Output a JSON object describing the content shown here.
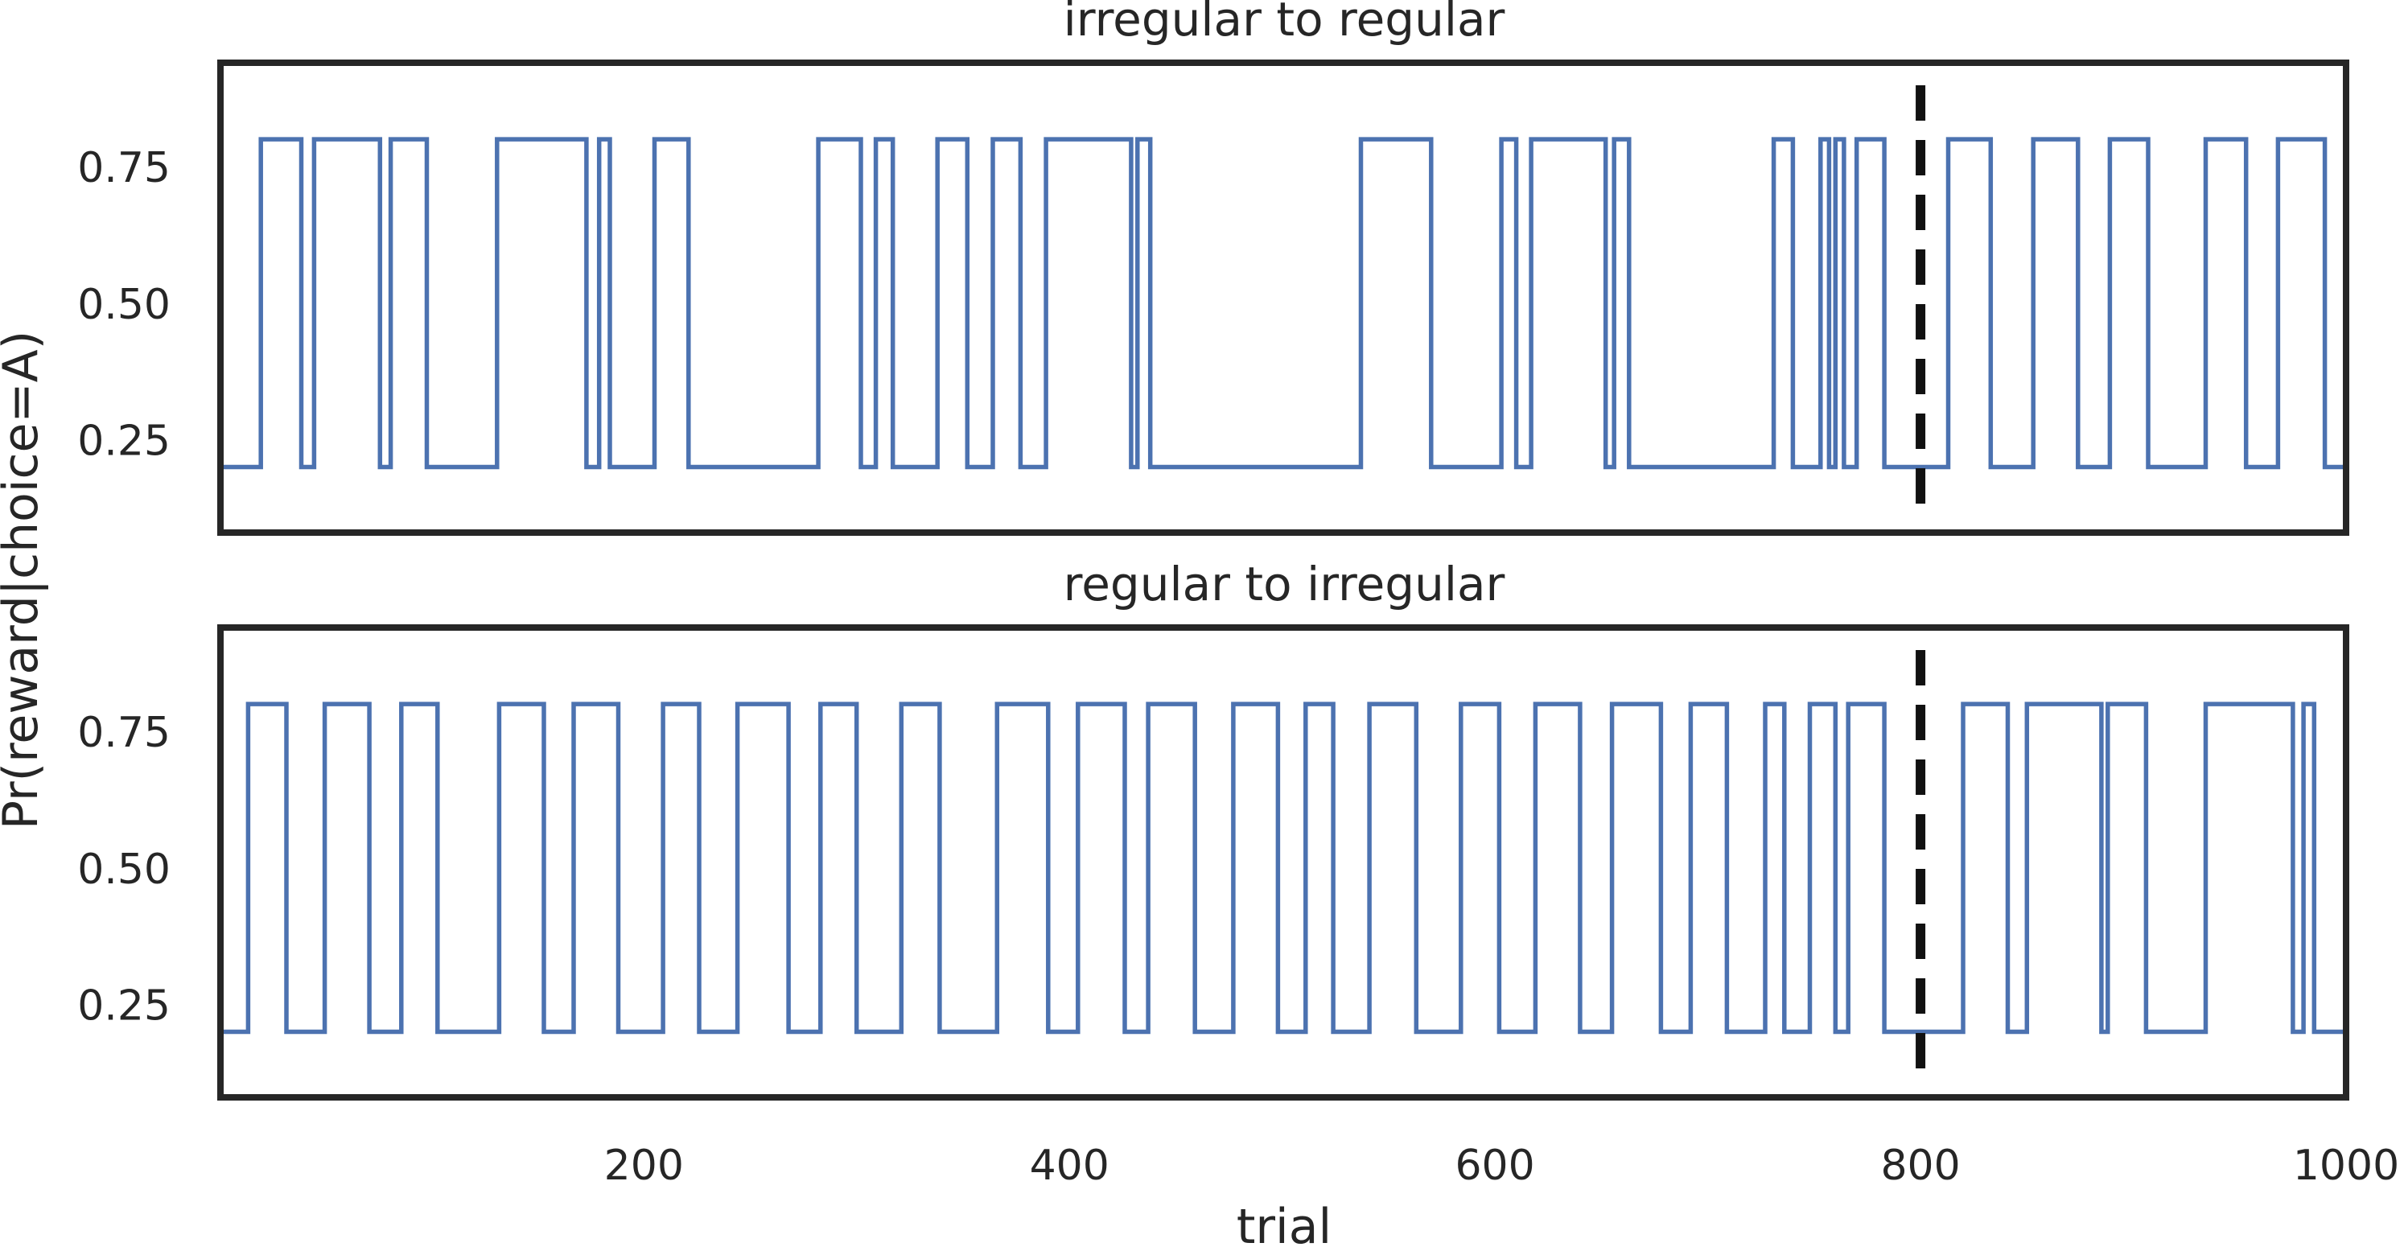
{
  "chart_data": {
    "type": "line",
    "xlabel": "trial",
    "ylabel": "Pr(reward|choice=A)",
    "xlim": [
      1,
      1000
    ],
    "ylim": [
      0.08,
      0.94
    ],
    "x_ticks": [
      200,
      400,
      600,
      800,
      1000
    ],
    "y_ticks": [
      "0.25",
      "0.50",
      "0.75"
    ],
    "grid": false,
    "series_color": "#4c72b0",
    "switch_color": "#111111",
    "panels": [
      {
        "title": "irregular to regular",
        "switch_trial": 800,
        "low": 0.2,
        "high": 0.8,
        "high_intervals": [
          [
            20,
            39
          ],
          [
            45,
            76
          ],
          [
            81,
            98
          ],
          [
            131,
            173
          ],
          [
            179,
            184
          ],
          [
            205,
            221
          ],
          [
            282,
            302
          ],
          [
            309,
            317
          ],
          [
            338,
            352
          ],
          [
            364,
            377
          ],
          [
            389,
            429
          ],
          [
            432,
            438
          ],
          [
            537,
            570
          ],
          [
            603,
            610
          ],
          [
            617,
            652
          ],
          [
            656,
            663
          ],
          [
            731,
            740
          ],
          [
            753,
            757
          ],
          [
            760,
            764
          ],
          [
            770,
            783
          ],
          [
            813,
            833
          ],
          [
            853,
            874
          ],
          [
            889,
            907
          ],
          [
            934,
            953
          ],
          [
            968,
            990
          ]
        ]
      },
      {
        "title": "regular to irregular",
        "switch_trial": 800,
        "low": 0.2,
        "high": 0.8,
        "high_intervals": [
          [
            14,
            32
          ],
          [
            50,
            71
          ],
          [
            86,
            103
          ],
          [
            132,
            153
          ],
          [
            167,
            188
          ],
          [
            209,
            226
          ],
          [
            244,
            268
          ],
          [
            283,
            300
          ],
          [
            321,
            339
          ],
          [
            366,
            390
          ],
          [
            404,
            426
          ],
          [
            437,
            459
          ],
          [
            477,
            498
          ],
          [
            511,
            524
          ],
          [
            541,
            563
          ],
          [
            584,
            602
          ],
          [
            619,
            640
          ],
          [
            655,
            678
          ],
          [
            692,
            709
          ],
          [
            727,
            736
          ],
          [
            748,
            760
          ],
          [
            766,
            783
          ],
          [
            820,
            841
          ],
          [
            850,
            885
          ],
          [
            888,
            906
          ],
          [
            934,
            975
          ],
          [
            980,
            985
          ]
        ]
      }
    ]
  }
}
